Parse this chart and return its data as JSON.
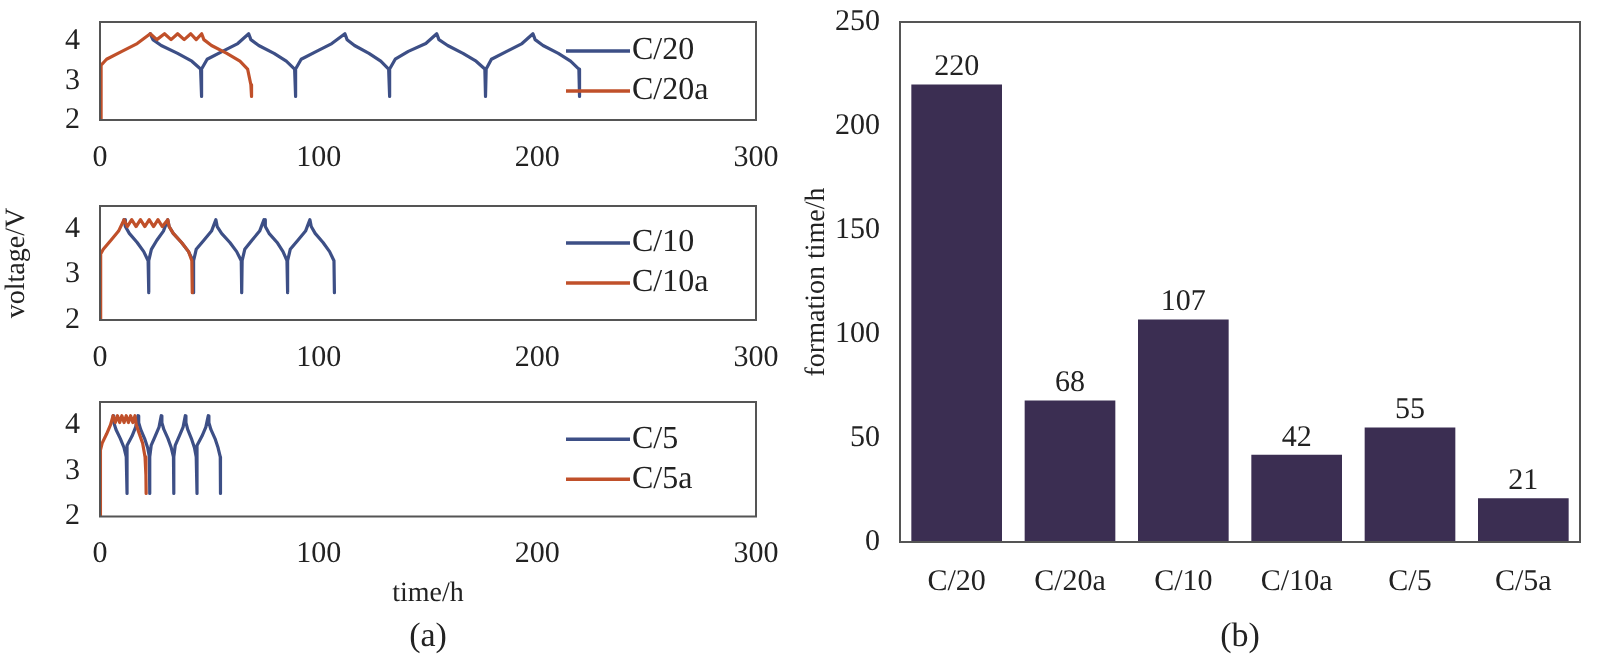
{
  "chart_data": [
    {
      "type": "line",
      "xlim": [
        0,
        300
      ],
      "xticks": [
        0,
        100,
        200,
        300
      ],
      "ylim": [
        2,
        4.5
      ],
      "yticks": [
        2,
        3,
        4
      ],
      "legend": "right",
      "marker": "none",
      "line_style": "solid",
      "grid": false,
      "series": [
        {
          "name": "C/20",
          "color": "#3d4f86",
          "x": [
            23,
            24.2,
            28,
            35.5,
            42,
            46,
            46.3,
            46.6,
            49,
            56,
            63,
            68,
            69,
            72.6,
            79.6,
            85.2,
            89,
            89.3,
            89.6,
            92,
            99,
            106,
            112,
            113,
            116.4,
            123,
            128.4,
            132,
            132.3,
            132.6,
            135,
            141,
            149,
            154,
            155,
            159,
            166,
            172,
            176,
            176.3,
            176.6,
            179,
            186,
            193,
            198,
            199,
            202.6,
            209.6,
            215.2,
            219,
            219.3
          ],
          "values": [
            4.2,
            4.05,
            3.9,
            3.7,
            3.5,
            3.3,
            2.6,
            3.3,
            3.55,
            3.75,
            3.95,
            4.2,
            4.05,
            3.9,
            3.7,
            3.5,
            3.3,
            2.6,
            3.3,
            3.55,
            3.75,
            3.95,
            4.2,
            4.05,
            3.9,
            3.7,
            3.5,
            3.3,
            2.6,
            3.3,
            3.55,
            3.75,
            3.95,
            4.2,
            4.05,
            3.9,
            3.7,
            3.5,
            3.3,
            2.6,
            3.3,
            3.55,
            3.75,
            3.95,
            4.2,
            4.05,
            3.9,
            3.7,
            3.5,
            3.3,
            2.6
          ]
        },
        {
          "name": "C/20a",
          "color": "#c0502a",
          "x": [
            0,
            0.5,
            3,
            10,
            17,
            23,
            26,
            29.5,
            32.5,
            35.5,
            38.5,
            41.5,
            44,
            46.5,
            47.5,
            51,
            58,
            64,
            67.5,
            69,
            69.3
          ],
          "values": [
            2,
            3.4,
            3.55,
            3.75,
            3.95,
            4.2,
            4.05,
            4.2,
            4.05,
            4.2,
            4.05,
            4.2,
            4.05,
            4.2,
            4.05,
            3.9,
            3.7,
            3.5,
            3.3,
            2.9,
            2.6
          ]
        }
      ]
    },
    {
      "type": "line",
      "ylabel": "voltage/V",
      "xlim": [
        0,
        300
      ],
      "xticks": [
        0,
        100,
        200,
        300
      ],
      "ylim": [
        2,
        4.5
      ],
      "yticks": [
        2,
        3,
        4
      ],
      "legend": "right",
      "marker": "none",
      "line_style": "solid",
      "grid": false,
      "series": [
        {
          "name": "C/10",
          "color": "#3d4f86",
          "x": [
            11,
            11.6,
            13.4,
            17,
            20,
            22,
            22.2,
            22.4,
            23.5,
            26,
            29,
            31,
            31.6,
            33.5,
            37.3,
            40.5,
            42.5,
            42.7,
            42.9,
            44,
            47.5,
            51,
            53,
            53.6,
            55.6,
            59.4,
            62.5,
            64.6,
            64.8,
            65,
            66.2,
            69.5,
            73,
            75,
            75.6,
            77.3,
            81,
            83.7,
            85.5,
            85.7,
            85.9,
            87,
            90.5,
            94,
            96,
            96.6,
            98.4,
            102,
            105,
            107,
            107.2
          ],
          "values": [
            4.2,
            4.05,
            3.9,
            3.7,
            3.5,
            3.3,
            2.6,
            3.3,
            3.55,
            3.75,
            3.95,
            4.2,
            4.05,
            3.9,
            3.7,
            3.5,
            3.3,
            2.6,
            3.3,
            3.55,
            3.75,
            3.95,
            4.2,
            4.05,
            3.9,
            3.7,
            3.5,
            3.3,
            2.6,
            3.3,
            3.55,
            3.75,
            3.95,
            4.2,
            4.05,
            3.9,
            3.7,
            3.5,
            3.3,
            2.6,
            3.3,
            3.55,
            3.75,
            3.95,
            4.2,
            4.05,
            3.9,
            3.7,
            3.5,
            3.3,
            2.6
          ]
        },
        {
          "name": "C/10a",
          "color": "#c0502a",
          "x": [
            0,
            0.3,
            1.5,
            5,
            8.5,
            11,
            12.5,
            14.5,
            16.5,
            18.5,
            20.5,
            22.5,
            24.5,
            26.5,
            28.5,
            31,
            31.6,
            33.5,
            37.3,
            40.5,
            42,
            42.2
          ],
          "values": [
            2,
            3.45,
            3.55,
            3.75,
            3.95,
            4.2,
            4.05,
            4.2,
            4.05,
            4.2,
            4.05,
            4.2,
            4.05,
            4.2,
            4.05,
            4.2,
            4.05,
            3.9,
            3.7,
            3.5,
            3.3,
            2.6
          ]
        }
      ]
    },
    {
      "type": "line",
      "xlabel": "time/h",
      "annotations": [
        "(a)"
      ],
      "xlim": [
        0,
        300
      ],
      "xticks": [
        0,
        100,
        200,
        300
      ],
      "ylim": [
        2,
        4.5
      ],
      "yticks": [
        2,
        3,
        4
      ],
      "legend": "right",
      "marker": "none",
      "line_style": "solid",
      "grid": false,
      "series": [
        {
          "name": "C/5",
          "color": "#3d4f86",
          "x": [
            6,
            6.3,
            7.3,
            9.3,
            11,
            12,
            12.1,
            12.2,
            12.8,
            14.6,
            16.3,
            17.4,
            17.7,
            18.6,
            20.4,
            21.8,
            22.6,
            22.7,
            22.8,
            23.4,
            25.2,
            27,
            28,
            28.3,
            29.2,
            31.1,
            32.6,
            33.6,
            33.7,
            33.8,
            34.4,
            36.2,
            38,
            39,
            39.3,
            40.1,
            41.8,
            43.2,
            44,
            44.1,
            44.2,
            44.8,
            46.6,
            48.4,
            49.5,
            49.8,
            50.7,
            52.6,
            54,
            55,
            55.1
          ],
          "values": [
            4.2,
            4.05,
            3.9,
            3.7,
            3.5,
            3.3,
            2.5,
            3.3,
            3.55,
            3.75,
            3.95,
            4.2,
            4.05,
            3.9,
            3.7,
            3.5,
            3.3,
            2.5,
            3.3,
            3.55,
            3.75,
            3.95,
            4.2,
            4.05,
            3.9,
            3.7,
            3.5,
            3.3,
            2.5,
            3.3,
            3.55,
            3.75,
            3.95,
            4.2,
            4.05,
            3.9,
            3.7,
            3.5,
            3.3,
            2.5,
            3.3,
            3.55,
            3.75,
            3.95,
            4.2,
            4.05,
            3.9,
            3.7,
            3.5,
            3.3,
            2.5
          ]
        },
        {
          "name": "C/5a",
          "color": "#c0502a",
          "x": [
            0,
            0.2,
            1,
            3,
            4.8,
            6,
            7,
            8,
            9,
            10,
            11,
            12,
            13,
            14,
            15,
            16,
            16.6,
            18,
            19.5,
            20.6,
            21,
            21.1
          ],
          "values": [
            2,
            3.45,
            3.6,
            3.8,
            4,
            4.2,
            4.05,
            4.2,
            4.05,
            4.2,
            4.05,
            4.2,
            4.05,
            4.2,
            4.05,
            4.2,
            4,
            3.8,
            3.6,
            3.3,
            2.9,
            2.5
          ]
        }
      ]
    },
    {
      "type": "bar",
      "ylabel": "formation time/h",
      "annotations": [
        "(b)"
      ],
      "categories": [
        "C/20",
        "C/20a",
        "C/10",
        "C/10a",
        "C/5",
        "C/5a"
      ],
      "values": [
        220,
        68,
        107,
        42,
        55,
        21
      ],
      "color": "#3b2e52",
      "ylim": [
        0,
        250
      ],
      "yticks": [
        0,
        50,
        100,
        150,
        200,
        250
      ],
      "data_labels": true,
      "grid": false
    }
  ]
}
